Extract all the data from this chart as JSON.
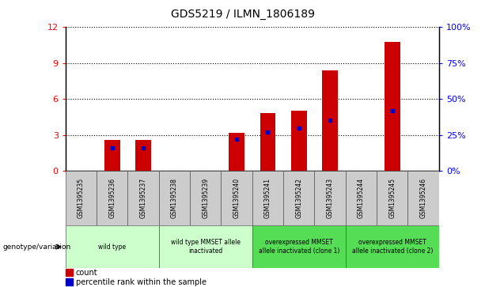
{
  "title": "GDS5219 / ILMN_1806189",
  "samples": [
    "GSM1395235",
    "GSM1395236",
    "GSM1395237",
    "GSM1395238",
    "GSM1395239",
    "GSM1395240",
    "GSM1395241",
    "GSM1395242",
    "GSM1395243",
    "GSM1395244",
    "GSM1395245",
    "GSM1395246"
  ],
  "counts": [
    0.0,
    2.6,
    2.6,
    0.0,
    0.0,
    3.2,
    4.8,
    5.0,
    8.4,
    0.0,
    10.8,
    0.0
  ],
  "percentiles": [
    0.0,
    16.0,
    16.0,
    0.0,
    0.0,
    22.0,
    27.0,
    30.0,
    35.0,
    0.0,
    42.0,
    0.0
  ],
  "ylim_left": [
    0,
    12
  ],
  "ylim_right": [
    0,
    100
  ],
  "yticks_left": [
    0,
    3,
    6,
    9,
    12
  ],
  "yticks_right": [
    0,
    25,
    50,
    75,
    100
  ],
  "bar_color": "#cc0000",
  "dot_color": "#0000cc",
  "plot_bg": "#ffffff",
  "groups": [
    {
      "label": "wild type",
      "indices": [
        0,
        1,
        2
      ],
      "color": "#ccffcc"
    },
    {
      "label": "wild type MMSET allele\ninactivated",
      "indices": [
        3,
        4,
        5
      ],
      "color": "#ccffcc"
    },
    {
      "label": "overexpressed MMSET\nallele inactivated (clone 1)",
      "indices": [
        6,
        7,
        8
      ],
      "color": "#55dd55"
    },
    {
      "label": "overexpressed MMSET\nallele inactivated (clone 2)",
      "indices": [
        9,
        10,
        11
      ],
      "color": "#55dd55"
    }
  ],
  "genotype_label": "genotype/variation",
  "legend_count_label": "count",
  "legend_percentile_label": "percentile rank within the sample",
  "title_fontsize": 10,
  "bar_width": 0.5
}
